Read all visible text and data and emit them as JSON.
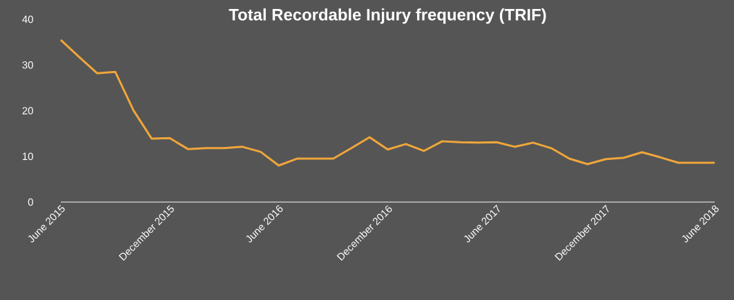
{
  "chart_data": {
    "type": "line",
    "title": "Total Recordable Injury frequency (TRIF)",
    "categories": [
      "June 2015",
      null,
      null,
      null,
      null,
      null,
      "December 2015",
      null,
      null,
      null,
      null,
      null,
      "June 2016",
      null,
      null,
      null,
      null,
      null,
      "December 2016",
      null,
      null,
      null,
      null,
      null,
      "June 2017",
      null,
      null,
      null,
      null,
      null,
      "December 2017",
      null,
      null,
      null,
      null,
      null,
      "June 2018"
    ],
    "values": [
      35.5,
      31.8,
      28.2,
      28.5,
      20.1,
      13.9,
      14.0,
      11.6,
      11.8,
      11.8,
      12.1,
      11.0,
      8.0,
      9.5,
      9.5,
      9.5,
      11.8,
      14.2,
      11.5,
      12.7,
      11.2,
      13.3,
      13.1,
      13.0,
      13.1,
      12.1,
      13.0,
      11.8,
      9.5,
      8.3,
      9.4,
      9.7,
      10.9,
      9.8,
      8.6,
      8.6,
      8.6
    ],
    "color": "#f0a63a",
    "ylim": [
      0,
      40
    ],
    "yticks": [
      0,
      10,
      20,
      30,
      40
    ],
    "grid": false,
    "marker": "none",
    "line_style": "solid"
  }
}
